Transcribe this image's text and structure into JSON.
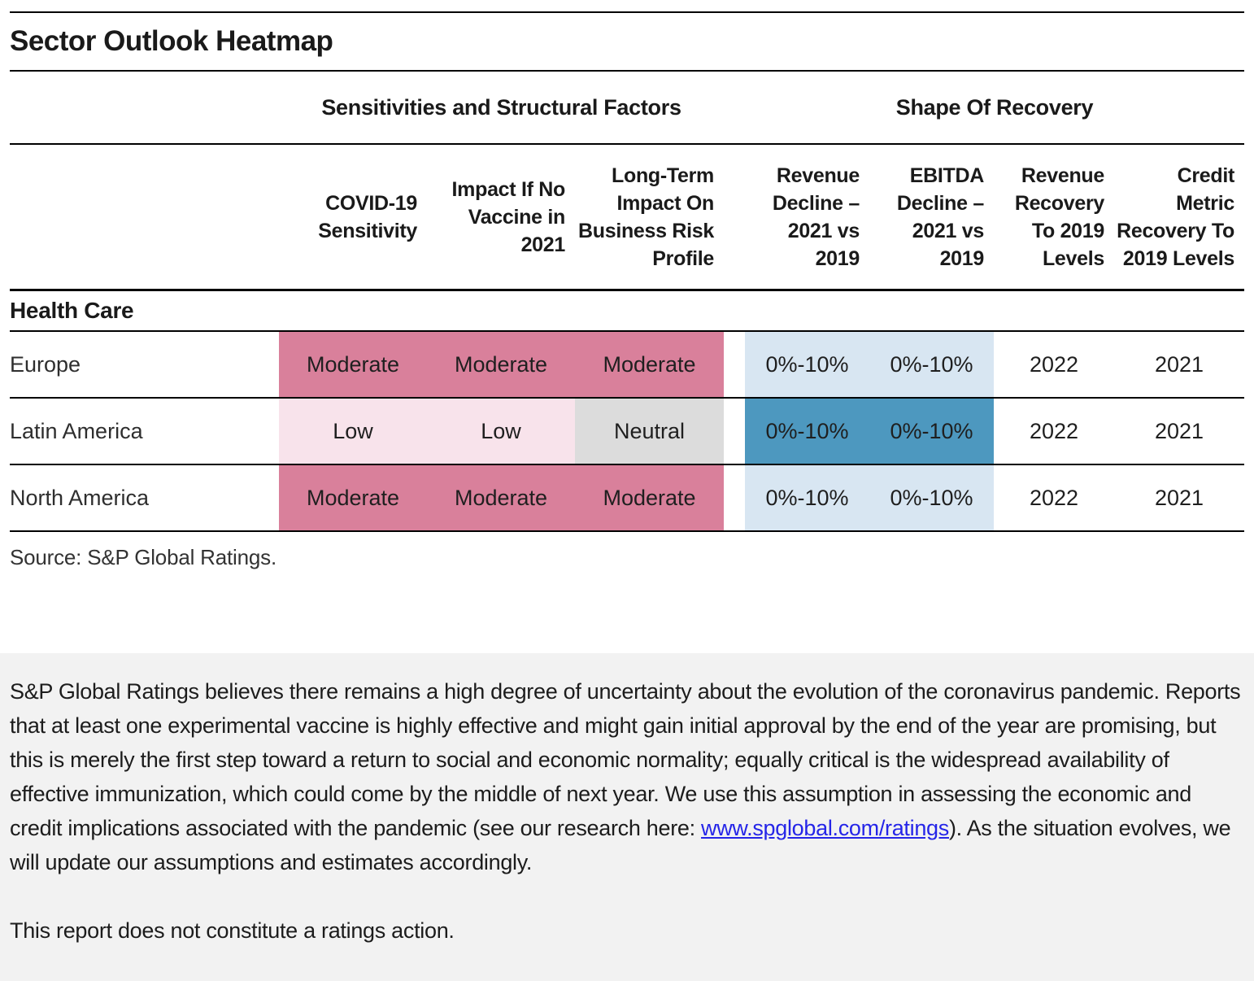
{
  "title": "Sector Outlook Heatmap",
  "table": {
    "group_headers": [
      {
        "label": "Sensitivities and Structural Factors"
      },
      {
        "label": "Shape Of Recovery"
      }
    ],
    "columns": [
      "COVID-19 Sensitivity",
      "Impact If No Vaccine in 2021",
      "Long-Term Impact On Business Risk Profile",
      "Revenue Decline – 2021 vs 2019",
      "EBITDA Decline – 2021 vs 2019",
      "Revenue Recovery To 2019 Levels",
      "Credit Metric Recovery To 2019 Levels"
    ],
    "section": "Health Care",
    "rows": [
      {
        "label": "Europe",
        "cells": [
          {
            "text": "Moderate",
            "tone": "moderate"
          },
          {
            "text": "Moderate",
            "tone": "moderate"
          },
          {
            "text": "Moderate",
            "tone": "moderate"
          },
          {
            "text": "0%-10%",
            "tone": "blue-light"
          },
          {
            "text": "0%-10%",
            "tone": "blue-light"
          },
          {
            "text": "2022",
            "tone": "none"
          },
          {
            "text": "2021",
            "tone": "none"
          }
        ]
      },
      {
        "label": "Latin America",
        "cells": [
          {
            "text": "Low",
            "tone": "low"
          },
          {
            "text": "Low",
            "tone": "low"
          },
          {
            "text": "Neutral",
            "tone": "neutral"
          },
          {
            "text": "0%-10%",
            "tone": "blue-dark"
          },
          {
            "text": "0%-10%",
            "tone": "blue-dark"
          },
          {
            "text": "2022",
            "tone": "none"
          },
          {
            "text": "2021",
            "tone": "none"
          }
        ]
      },
      {
        "label": "North America",
        "cells": [
          {
            "text": "Moderate",
            "tone": "moderate"
          },
          {
            "text": "Moderate",
            "tone": "moderate"
          },
          {
            "text": "Moderate",
            "tone": "moderate"
          },
          {
            "text": "0%-10%",
            "tone": "blue-light"
          },
          {
            "text": "0%-10%",
            "tone": "blue-light"
          },
          {
            "text": "2022",
            "tone": "none"
          },
          {
            "text": "2021",
            "tone": "none"
          }
        ]
      }
    ],
    "source": "Source: S&P Global Ratings."
  },
  "footnote": {
    "pre_link": "S&P Global Ratings believes there remains a high degree of uncertainty about the evolution of the coronavirus pandemic. Reports that at least one experimental vaccine is highly effective and might gain initial approval by the end of the year are promising, but this is merely the first step toward a return to social and economic normality; equally critical is the widespread availability of effective immunization, which could come by the middle of next year. We use this assumption in assessing the economic and credit implications associated with the pandemic (see our research here: ",
    "link_text": "www.spglobal.com/ratings",
    "post_link": "). As the situation evolves, we will update our assumptions and estimates accordingly.",
    "disclaimer": "This report does not constitute a ratings action."
  },
  "colors": {
    "moderate": "#D9809B",
    "low": "#F8E3EB",
    "neutral": "#DCDCDC",
    "decline_light": "#D8E6F2",
    "decline_dark": "#4D98BF",
    "footnote_bg": "#F2F2F2",
    "link": "#2525E8",
    "rule": "#000000",
    "text": "#1A1A1A"
  },
  "chart_data": {
    "type": "heatmap",
    "title": "Sector Outlook Heatmap",
    "column_groups": [
      {
        "label": "Sensitivities and Structural Factors",
        "columns": [
          0,
          1,
          2
        ]
      },
      {
        "label": "Shape Of Recovery",
        "columns": [
          3,
          4,
          5,
          6
        ]
      }
    ],
    "columns": [
      "COVID-19 Sensitivity",
      "Impact If No Vaccine in 2021",
      "Long-Term Impact On Business Risk Profile",
      "Revenue Decline – 2021 vs 2019",
      "EBITDA Decline – 2021 vs 2019",
      "Revenue Recovery To 2019 Levels",
      "Credit Metric Recovery To 2019 Levels"
    ],
    "section": "Health Care",
    "rows": [
      "Europe",
      "Latin America",
      "North America"
    ],
    "values": [
      [
        "Moderate",
        "Moderate",
        "Moderate",
        "0%-10%",
        "0%-10%",
        "2022",
        "2021"
      ],
      [
        "Low",
        "Low",
        "Neutral",
        "0%-10%",
        "0%-10%",
        "2022",
        "2021"
      ],
      [
        "Moderate",
        "Moderate",
        "Moderate",
        "0%-10%",
        "0%-10%",
        "2022",
        "2021"
      ]
    ],
    "category_colors": {
      "Moderate": "#D9809B",
      "Low": "#F8E3EB",
      "Neutral": "#DCDCDC",
      "decline_row_light": "#D8E6F2",
      "decline_row_dark": "#4D98BF"
    },
    "source": "Source: S&P Global Ratings."
  }
}
